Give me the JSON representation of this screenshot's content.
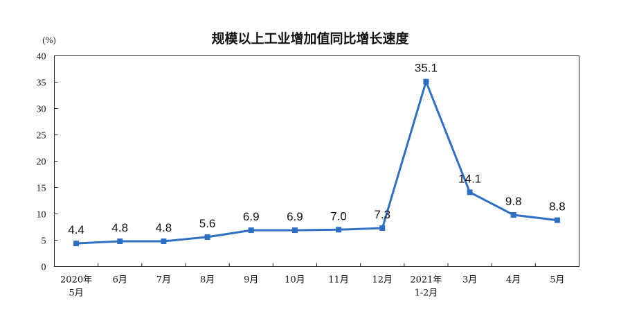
{
  "chart_data": {
    "type": "line",
    "title": "规模以上工业增加值同比增长速度",
    "ylabel": "(%)",
    "xlabel": "",
    "ylim": [
      0,
      40
    ],
    "yticks": [
      0,
      5,
      10,
      15,
      20,
      25,
      30,
      35,
      40
    ],
    "categories": [
      [
        "2020年",
        "5月"
      ],
      [
        "6月"
      ],
      [
        "7月"
      ],
      [
        "8月"
      ],
      [
        "9月"
      ],
      [
        "10月"
      ],
      [
        "11月"
      ],
      [
        "12月"
      ],
      [
        "2021年",
        "1-2月"
      ],
      [
        "3月"
      ],
      [
        "4月"
      ],
      [
        "5月"
      ]
    ],
    "series": [
      {
        "values": [
          4.4,
          4.8,
          4.8,
          5.6,
          6.9,
          6.9,
          7.0,
          7.3,
          35.1,
          14.1,
          9.8,
          8.8
        ],
        "labels": [
          "4.4",
          "4.8",
          "4.8",
          "5.6",
          "6.9",
          "6.9",
          "7.0",
          "7.3",
          "35.1",
          "14.1",
          "9.8",
          "8.8"
        ],
        "color": "#2e6fc4"
      }
    ],
    "grid": false,
    "legend": "none"
  }
}
